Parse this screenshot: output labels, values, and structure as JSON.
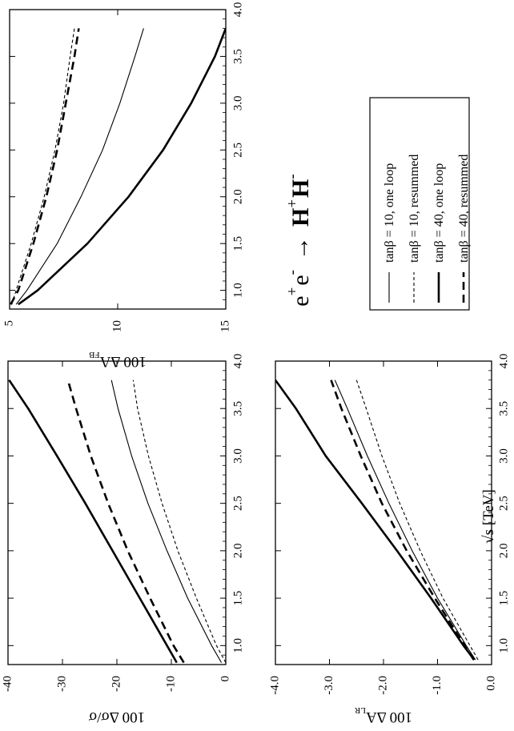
{
  "figure": {
    "process": {
      "e1": "e",
      "e1_sup": "+",
      "e2": "e",
      "e2_sup": "-",
      "arrow": "→",
      "h1": "H",
      "h1_sup": "+",
      "h2": "H",
      "h2_sup": "-"
    },
    "shared_xlabel": "√s [TeV]",
    "x_ticks": [
      "1.0",
      "1.5",
      "2.0",
      "2.5",
      "3.0",
      "3.5",
      "4.0"
    ],
    "legend": [
      {
        "label": "tanβ = 10, one loop",
        "style": "thin-solid"
      },
      {
        "label": "tanβ = 10, resummed",
        "style": "thin-dashed"
      },
      {
        "label": "tanβ = 40, one loop",
        "style": "thick-solid"
      },
      {
        "label": "tanβ = 40, resummed",
        "style": "thick-dashed"
      }
    ]
  },
  "chart_data": [
    {
      "id": "sigma",
      "type": "line",
      "ylabel": "100 Δσ/σ",
      "xlim": [
        0.8,
        4.0
      ],
      "ylim": [
        -40,
        0
      ],
      "x_ticks": [
        1.0,
        1.5,
        2.0,
        2.5,
        3.0,
        3.5,
        4.0
      ],
      "y_ticks": [
        0,
        -10,
        -20,
        -30,
        -40
      ],
      "y_tick_labels": [
        "0",
        "-10",
        "-20",
        "-30",
        "-40"
      ],
      "series": [
        {
          "name": "tanβ = 10, one loop",
          "style": "thin-solid",
          "x": [
            0.82,
            1.0,
            1.5,
            2.0,
            2.5,
            3.0,
            3.5,
            3.8
          ],
          "y": [
            -0.8,
            -2.6,
            -7.0,
            -10.8,
            -14.3,
            -17.3,
            -19.8,
            -21.0
          ]
        },
        {
          "name": "tanβ = 10, resummed",
          "style": "thin-dashed",
          "x": [
            0.82,
            1.0,
            1.5,
            2.0,
            2.5,
            3.0,
            3.5,
            3.8
          ],
          "y": [
            0.0,
            -1.7,
            -5.4,
            -8.8,
            -11.7,
            -14.2,
            -16.2,
            -17.0
          ]
        },
        {
          "name": "tanβ = 40, one loop",
          "style": "thick-solid",
          "x": [
            0.82,
            1.0,
            1.5,
            2.0,
            2.5,
            3.0,
            3.5,
            3.8
          ],
          "y": [
            -9.0,
            -10.8,
            -15.8,
            -20.8,
            -25.8,
            -31.0,
            -36.3,
            -39.8
          ]
        },
        {
          "name": "tanβ = 40, resummed",
          "style": "thick-dashed",
          "x": [
            0.82,
            1.0,
            1.5,
            2.0,
            2.5,
            3.0,
            3.5,
            3.8
          ],
          "y": [
            -7.7,
            -9.6,
            -13.9,
            -18.0,
            -21.6,
            -24.8,
            -27.5,
            -29.0
          ]
        }
      ]
    },
    {
      "id": "afb",
      "type": "line",
      "ylabel": "100 ΔA",
      "ylabel_sub": "FB",
      "xlim": [
        0.8,
        4.0
      ],
      "ylim": [
        5,
        15
      ],
      "x_ticks": [
        1.0,
        1.5,
        2.0,
        2.5,
        3.0,
        3.5,
        4.0
      ],
      "y_ticks": [
        5,
        10,
        15
      ],
      "y_tick_labels": [
        "5",
        "10",
        "15"
      ],
      "series": [
        {
          "name": "tanβ = 10, one loop",
          "style": "thin-solid",
          "x": [
            0.85,
            1.0,
            1.5,
            2.0,
            2.5,
            3.0,
            3.5,
            3.8
          ],
          "y": [
            5.3,
            5.8,
            7.2,
            8.3,
            9.3,
            10.1,
            10.8,
            11.2
          ]
        },
        {
          "name": "tanβ = 10, resummed",
          "style": "thin-dashed",
          "x": [
            0.85,
            1.0,
            1.5,
            2.0,
            2.5,
            3.0,
            3.5,
            3.8
          ],
          "y": [
            5.1,
            5.3,
            6.0,
            6.6,
            7.1,
            7.5,
            7.8,
            8.0
          ]
        },
        {
          "name": "tanβ = 40, one loop",
          "style": "thick-solid",
          "x": [
            0.85,
            1.0,
            1.5,
            2.0,
            2.5,
            3.0,
            3.5,
            3.8
          ],
          "y": [
            5.4,
            6.3,
            8.6,
            10.5,
            12.1,
            13.4,
            14.5,
            15.0
          ]
        },
        {
          "name": "tanβ = 40, resummed",
          "style": "thick-dashed",
          "x": [
            0.85,
            1.0,
            1.5,
            2.0,
            2.5,
            3.0,
            3.5,
            3.8
          ],
          "y": [
            5.05,
            5.4,
            6.1,
            6.7,
            7.2,
            7.6,
            8.0,
            8.2
          ]
        }
      ]
    },
    {
      "id": "alr",
      "type": "line",
      "ylabel": "100 ΔA",
      "ylabel_sub": "LR",
      "xlim": [
        0.8,
        4.0
      ],
      "ylim": [
        -4.0,
        0.0
      ],
      "x_ticks": [
        1.0,
        1.5,
        2.0,
        2.5,
        3.0,
        3.5,
        4.0
      ],
      "y_ticks": [
        0.0,
        -1.0,
        -2.0,
        -3.0,
        -4.0
      ],
      "y_tick_labels": [
        "0.0",
        "-1.0",
        "-2.0",
        "-3.0",
        "-4.0"
      ],
      "series": [
        {
          "name": "tanβ = 10, one loop",
          "style": "thin-solid",
          "x": [
            0.85,
            1.0,
            1.5,
            2.0,
            2.5,
            3.0,
            3.5,
            3.8
          ],
          "y": [
            -0.3,
            -0.47,
            -1.0,
            -1.47,
            -1.9,
            -2.3,
            -2.67,
            -2.9
          ]
        },
        {
          "name": "tanβ = 10, resummed",
          "style": "thin-dashed",
          "x": [
            0.85,
            1.0,
            1.5,
            2.0,
            2.5,
            3.0,
            3.5,
            3.8
          ],
          "y": [
            -0.25,
            -0.4,
            -0.9,
            -1.32,
            -1.7,
            -2.03,
            -2.32,
            -2.5
          ]
        },
        {
          "name": "tanβ = 40, one loop",
          "style": "thick-solid",
          "x": [
            0.85,
            1.0,
            1.5,
            2.0,
            2.5,
            3.0,
            3.5,
            3.8
          ],
          "y": [
            -0.32,
            -0.52,
            -1.12,
            -1.75,
            -2.4,
            -3.07,
            -3.62,
            -4.0
          ]
        },
        {
          "name": "tanβ = 40, resummed",
          "style": "thick-dashed",
          "x": [
            0.85,
            1.0,
            1.5,
            2.0,
            2.5,
            3.0,
            3.5,
            3.8
          ],
          "y": [
            -0.33,
            -0.5,
            -1.05,
            -1.57,
            -2.03,
            -2.42,
            -2.78,
            -2.97
          ]
        }
      ]
    }
  ]
}
